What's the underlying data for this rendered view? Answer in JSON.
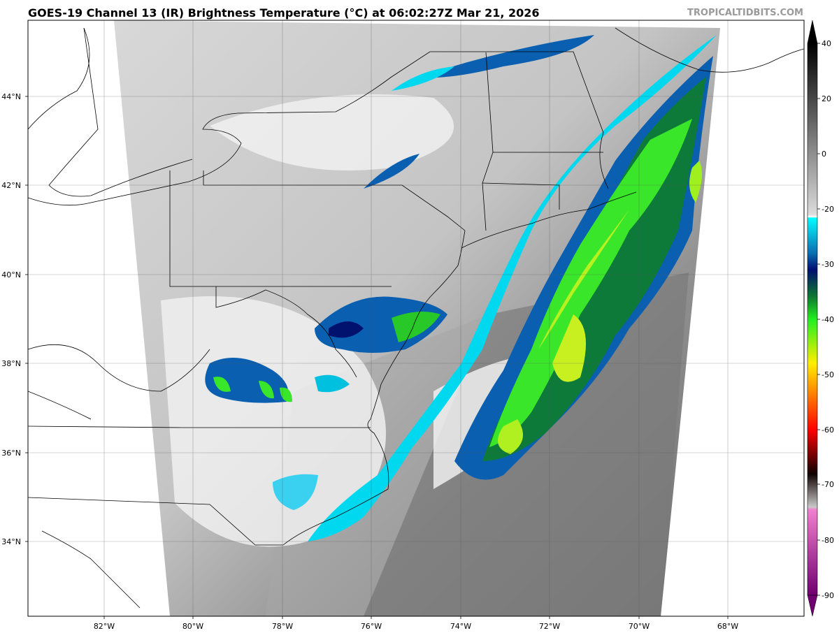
{
  "title": "GOES-19 Channel 13 (IR) Brightness Temperature (°C) at 06:02:27Z Mar 21, 2026",
  "watermark": "TROPICALTIDBITS.COM",
  "map": {
    "lat_labels": [
      "44°N",
      "42°N",
      "40°N",
      "38°N",
      "36°N",
      "34°N"
    ],
    "lon_labels": [
      "82°W",
      "80°W",
      "78°W",
      "76°W",
      "74°W",
      "72°W",
      "70°W",
      "68°W"
    ]
  },
  "colorbar": {
    "ticks": [
      "40",
      "20",
      "0",
      "-20",
      "-30",
      "-40",
      "-50",
      "-60",
      "-70",
      "-80",
      "-90"
    ],
    "colors": {
      "warm_top": "#000000",
      "zero": "#d9d9d9",
      "minus20_white": "#ffffff",
      "cyan": "#00e5ff",
      "blue": "#0a5fa8",
      "navy": "#00126e",
      "dark_green": "#0c6e3a",
      "green": "#20e020",
      "yellow": "#ffe600",
      "orange": "#ff8000",
      "red": "#ff0000",
      "black": "#000000",
      "pink": "#f070c8",
      "purple": "#780078"
    }
  }
}
